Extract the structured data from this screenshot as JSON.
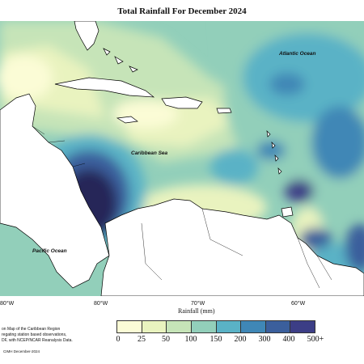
{
  "title": "Total Rainfall For December 2024",
  "ocean_labels": {
    "atlantic": "Atlantic Ocean",
    "caribbean": "Caribbean Sea",
    "pacific": "Pacific Ocean"
  },
  "lon_ticks": [
    "80°W",
    "80°W",
    "70°W",
    "60°W"
  ],
  "colorbar": {
    "title": "Rainfall (mm)",
    "labels": [
      "0",
      "25",
      "50",
      "100",
      "150",
      "200",
      "300",
      "400",
      "500+"
    ],
    "colors": [
      "#fbfcd6",
      "#e9f3bf",
      "#c6e4b8",
      "#92cfba",
      "#5ab2c6",
      "#3f87b6",
      "#3b5f9c",
      "#3c3e86",
      "#272858"
    ]
  },
  "footnote": {
    "line1": "on Map of the Caribbean Region",
    "line2": "regating station based observations,",
    "line3": "DF, with NCEP/NCAR Reanalysis Data."
  },
  "copyright": "CIMH December-2024",
  "colors": {
    "land": "#ffffff",
    "outline": "#000000"
  }
}
